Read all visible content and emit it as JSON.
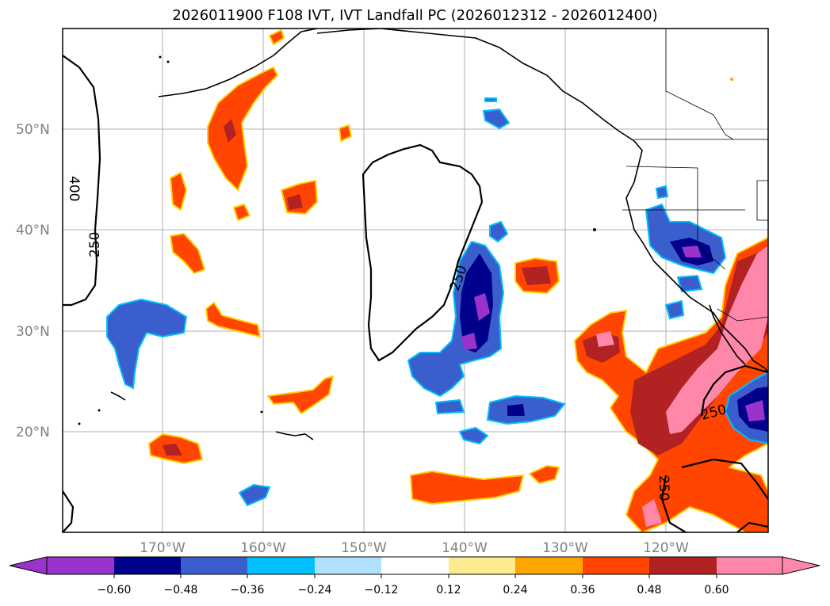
{
  "title": "2026011900 F108 IVT, IVT Landfall PC (2026012312 - 2026012400)",
  "latitude_labels": [
    "50°N",
    "40°N",
    "30°N",
    "20°N"
  ],
  "longitude_labels": [
    "170°W",
    "160°W",
    "150°W",
    "140°W",
    "130°W",
    "120°W"
  ],
  "ivt_contour_labels": [
    "400",
    "250",
    "250",
    "250",
    "250"
  ],
  "colorbar": {
    "ticks": [
      "−0.60",
      "−0.48",
      "−0.36",
      "−0.24",
      "−0.12",
      "0.12",
      "0.24",
      "0.36",
      "0.48",
      "0.60"
    ],
    "colors": [
      "#9933cc",
      "#00008b",
      "#3a5fcd",
      "#00bfff",
      "#b0e2ff",
      "#ffffff",
      "#ffeb8f",
      "#ffa500",
      "#ff4500",
      "#b22222",
      "#ff88aa"
    ]
  },
  "colors": {
    "grid": "#b0b0b0",
    "coast": "#000000",
    "label": "#808080"
  }
}
